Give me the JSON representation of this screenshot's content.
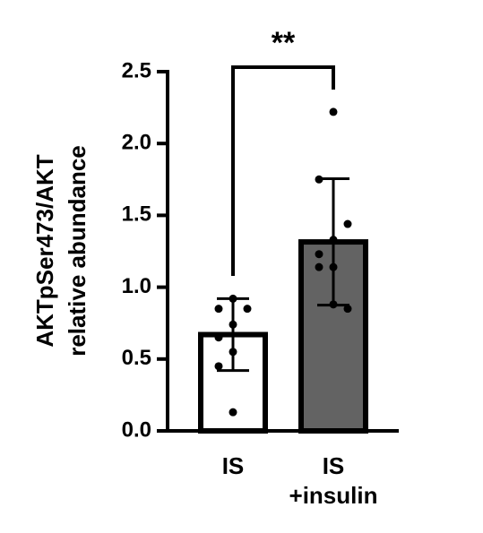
{
  "chart_data": {
    "type": "bar",
    "ylabel": [
      "AKTpSer473/AKT",
      "relative abundance"
    ],
    "categories": [
      [
        "IS"
      ],
      [
        "IS",
        "+insulin"
      ]
    ],
    "values": [
      0.67,
      1.315
    ],
    "errors": [
      0.25,
      0.44
    ],
    "colors": [
      "#ffffff",
      "#636363"
    ],
    "points": [
      [
        0.92,
        0.85,
        0.85,
        0.74,
        0.65,
        0.55,
        0.45,
        0.13
      ],
      [
        2.22,
        1.75,
        1.44,
        1.33,
        1.23,
        1.14,
        1.14,
        0.88,
        0.85
      ]
    ],
    "annotation": "**",
    "ylim": [
      0,
      2.5
    ],
    "yticks": [
      {
        "value": 0,
        "label": "0.0"
      },
      {
        "value": 0.5,
        "label": "0.5"
      },
      {
        "value": 1,
        "label": "1.0"
      },
      {
        "value": 1.5,
        "label": "1.5"
      },
      {
        "value": 2,
        "label": "2.0"
      },
      {
        "value": 2.5,
        "label": "2.5"
      }
    ]
  }
}
